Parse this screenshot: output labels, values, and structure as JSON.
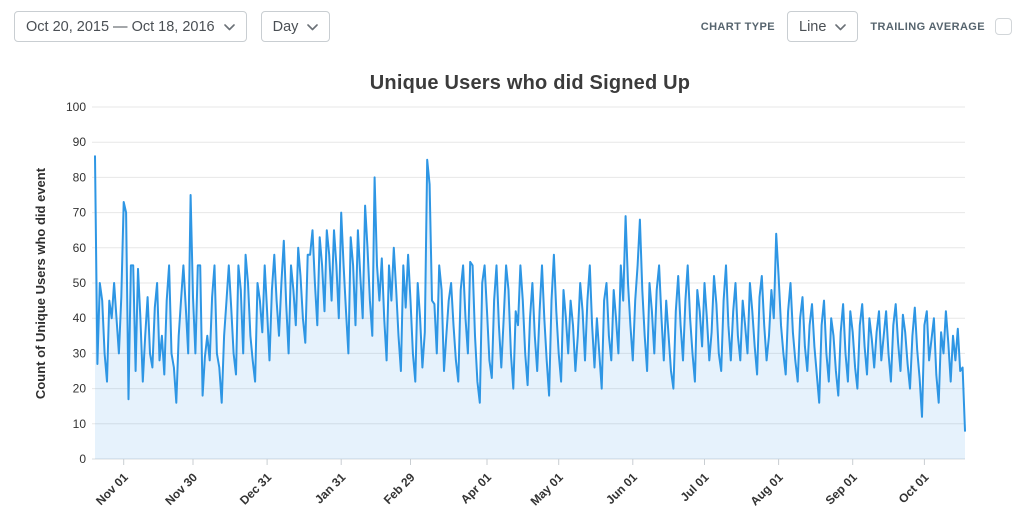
{
  "controls": {
    "date_range": "Oct 20, 2015 — Oct 18, 2016",
    "granularity": "Day",
    "chart_type_label": "CHART TYPE",
    "chart_type_value": "Line",
    "trailing_average_label": "TRAILING AVERAGE",
    "trailing_average_checked": false
  },
  "colors": {
    "line": "#2e96e4",
    "fill": "rgba(46,150,228,0.12)",
    "gridline": "#e7e7e7",
    "zeroline": "#d8dcdf",
    "tick": "#c9ced2"
  },
  "chart_data": {
    "type": "line",
    "title": "Unique Users who did Signed Up",
    "xlabel": "",
    "ylabel": "Count of Unique Users who did event",
    "ylim": [
      0,
      100
    ],
    "y_tick_step": 10,
    "grid": true,
    "legend": "none",
    "area_fill": true,
    "x_unit": "day",
    "x_start_date": "Oct 20, 2015",
    "x_end_date": "Oct 18, 2016",
    "x_tick_labels": [
      {
        "label": "Nov 01",
        "day": 12
      },
      {
        "label": "Nov 30",
        "day": 41
      },
      {
        "label": "Dec 31",
        "day": 72
      },
      {
        "label": "Jan 31",
        "day": 103
      },
      {
        "label": "Feb 29",
        "day": 132
      },
      {
        "label": "Apr 01",
        "day": 164
      },
      {
        "label": "May 01",
        "day": 194
      },
      {
        "label": "Jun 01",
        "day": 225
      },
      {
        "label": "Jul 01",
        "day": 255
      },
      {
        "label": "Aug 01",
        "day": 286
      },
      {
        "label": "Sep 01",
        "day": 317
      },
      {
        "label": "Oct 01",
        "day": 347
      }
    ],
    "series": [
      {
        "name": "Unique Users who did Signed Up",
        "values": [
          86,
          27,
          50,
          45,
          30,
          22,
          45,
          40,
          50,
          40,
          30,
          46,
          73,
          70,
          17,
          55,
          55,
          25,
          54,
          40,
          22,
          35,
          46,
          30,
          26,
          43,
          50,
          28,
          35,
          24,
          45,
          55,
          30,
          26,
          16,
          35,
          45,
          55,
          43,
          30,
          75,
          46,
          30,
          55,
          55,
          18,
          29,
          35,
          28,
          46,
          55,
          30,
          26,
          16,
          35,
          45,
          55,
          43,
          30,
          24,
          55,
          48,
          30,
          58,
          50,
          35,
          28,
          22,
          50,
          45,
          36,
          55,
          42,
          28,
          48,
          58,
          45,
          35,
          50,
          62,
          44,
          30,
          55,
          48,
          38,
          60,
          52,
          40,
          33,
          58,
          58,
          65,
          50,
          38,
          63,
          55,
          42,
          65,
          58,
          45,
          65,
          55,
          40,
          70,
          55,
          42,
          30,
          63,
          55,
          38,
          65,
          52,
          40,
          72,
          60,
          45,
          35,
          80,
          55,
          45,
          57,
          40,
          28,
          55,
          45,
          60,
          48,
          35,
          25,
          55,
          43,
          58,
          45,
          30,
          22,
          50,
          40,
          26,
          36,
          85,
          78,
          45,
          44,
          30,
          55,
          48,
          25,
          35,
          45,
          50,
          38,
          28,
          22,
          48,
          55,
          40,
          30,
          56,
          55,
          35,
          22,
          16,
          50,
          55,
          42,
          28,
          23,
          45,
          55,
          38,
          26,
          40,
          55,
          48,
          30,
          20,
          42,
          38,
          55,
          45,
          30,
          21,
          40,
          50,
          35,
          25,
          42,
          55,
          40,
          28,
          18,
          45,
          58,
          42,
          30,
          22,
          48,
          40,
          30,
          45,
          38,
          25,
          35,
          50,
          42,
          28,
          45,
          55,
          38,
          26,
          40,
          30,
          20,
          45,
          50,
          35,
          28,
          48,
          40,
          30,
          55,
          45,
          69,
          50,
          38,
          28,
          45,
          55,
          68,
          48,
          35,
          25,
          50,
          42,
          30,
          48,
          55,
          40,
          28,
          45,
          35,
          25,
          20,
          42,
          52,
          38,
          28,
          45,
          55,
          40,
          30,
          22,
          48,
          42,
          32,
          50,
          40,
          28,
          36,
          52,
          44,
          30,
          25,
          45,
          55,
          38,
          28,
          42,
          50,
          35,
          28,
          45,
          38,
          30,
          50,
          42,
          32,
          24,
          46,
          52,
          38,
          28,
          35,
          48,
          40,
          64,
          52,
          38,
          30,
          24,
          42,
          50,
          36,
          28,
          22,
          40,
          46,
          32,
          25,
          38,
          44,
          32,
          24,
          16,
          38,
          45,
          30,
          22,
          40,
          35,
          25,
          18,
          36,
          44,
          30,
          22,
          42,
          36,
          26,
          20,
          38,
          44,
          32,
          24,
          40,
          34,
          26,
          36,
          42,
          28,
          35,
          42,
          30,
          22,
          38,
          44,
          33,
          25,
          41,
          36,
          27,
          20,
          35,
          43,
          31,
          23,
          12,
          38,
          42,
          28,
          34,
          40,
          24,
          16,
          36,
          30,
          42,
          33,
          22,
          35,
          28,
          37,
          25,
          26,
          8
        ]
      }
    ]
  }
}
